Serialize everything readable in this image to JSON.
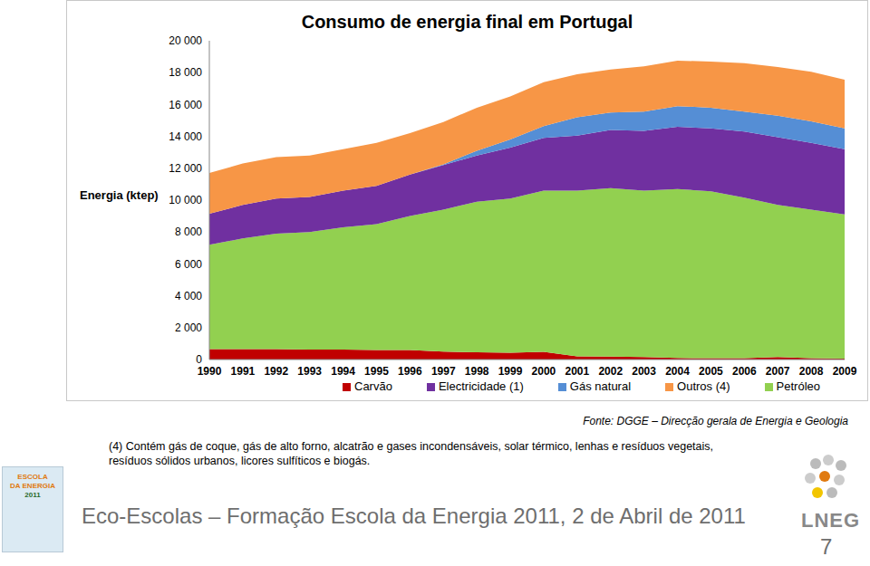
{
  "chart_data": {
    "type": "area",
    "title": "Consumo de energia final em Portugal",
    "y_label": "Energia (ktep)",
    "stacked": true,
    "legend": "bottom",
    "grid": false,
    "categories": [
      "1990",
      "1991",
      "1992",
      "1993",
      "1994",
      "1995",
      "1996",
      "1997",
      "1998",
      "1999",
      "2000",
      "2001",
      "2002",
      "2003",
      "2004",
      "2005",
      "2006",
      "2007",
      "2008",
      "2009"
    ],
    "ylim": [
      0,
      20000
    ],
    "yticks": [
      0,
      {
        "value": 2000,
        "label": "2 000"
      },
      {
        "value": 4000,
        "label": "4 000"
      },
      {
        "value": 6000,
        "label": "6 000"
      },
      {
        "value": 8000,
        "label": "8 000"
      },
      {
        "value": 10000,
        "label": "10 000"
      },
      {
        "value": 12000,
        "label": "12 000"
      },
      {
        "value": 14000,
        "label": "14 000"
      },
      {
        "value": 16000,
        "label": "16 000"
      },
      {
        "value": 18000,
        "label": "18 000"
      },
      {
        "value": 20000,
        "label": "20 000"
      }
    ],
    "series": [
      {
        "name": "Carvão",
        "color": "#c00000",
        "values": [
          650,
          650,
          650,
          620,
          620,
          600,
          600,
          500,
          450,
          420,
          480,
          200,
          180,
          150,
          100,
          80,
          80,
          150,
          80,
          50
        ]
      },
      {
        "name": "Petróleo",
        "color": "#92d050",
        "values": [
          6550,
          6950,
          7250,
          7380,
          7680,
          7900,
          8400,
          8900,
          9450,
          9680,
          10120,
          10400,
          10570,
          10450,
          10600,
          10470,
          10070,
          9550,
          9320,
          9050
        ]
      },
      {
        "name": "Electricidade (1)",
        "color": "#7030a0",
        "values": [
          1950,
          2100,
          2200,
          2200,
          2300,
          2400,
          2600,
          2800,
          2900,
          3200,
          3300,
          3450,
          3650,
          3750,
          3900,
          3950,
          4150,
          4250,
          4200,
          4100
        ]
      },
      {
        "name": "Gás natural",
        "color": "#558ed5",
        "values": [
          0,
          0,
          0,
          0,
          0,
          0,
          0,
          50,
          300,
          500,
          750,
          1150,
          1100,
          1200,
          1300,
          1300,
          1250,
          1350,
          1350,
          1300
        ]
      },
      {
        "name": "Outros (4)",
        "color": "#f79646",
        "values": [
          2550,
          2600,
          2600,
          2600,
          2600,
          2700,
          2600,
          2650,
          2700,
          2700,
          2750,
          2700,
          2700,
          2850,
          2850,
          2900,
          3050,
          3050,
          3100,
          3050
        ]
      }
    ]
  },
  "source": "Fonte: DGGE – Direcção gerala de Energia e Geologia",
  "footnote": "(4) Contém gás de coque, gás de alto forno, alcatrão e gases incondensáveis, solar térmico, lenhas e resíduos vegetais, resíduos sólidos urbanos, licores sulfíticos e biogás.",
  "footer": "Eco-Escolas – Formação Escola da Energia 2011, 2 de Abril de 2011",
  "page": "7",
  "logos": {
    "left": [
      "ESCOLA",
      "DA ENERGIA",
      "2011"
    ],
    "right": "LNEG"
  }
}
